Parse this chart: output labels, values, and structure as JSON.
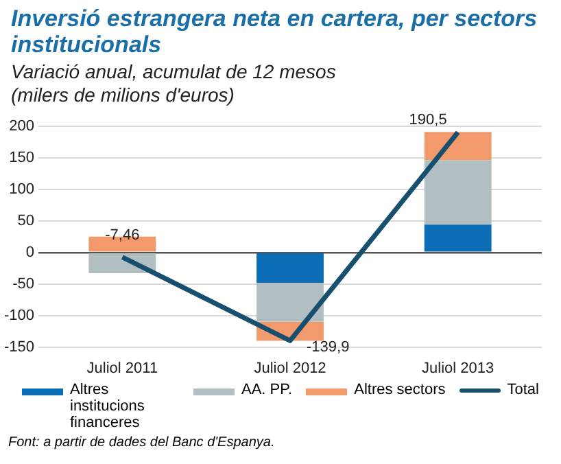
{
  "chart_data": {
    "type": "bar",
    "stacked": true,
    "title": "Inversió estrangera neta en cartera, per sectors institucionals",
    "subtitle": "Variació anual, acumulat de 12 mesos (milers de milions d'euros)",
    "categories": [
      "Juliol 2011",
      "Juliol 2012",
      "Juliol 2013"
    ],
    "series": [
      {
        "name": "Altres institucions financeres",
        "color": "#0a6db5",
        "values": [
          0,
          -48,
          44
        ]
      },
      {
        "name": "AA. PP.",
        "color": "#b2bfc2",
        "values": [
          -33,
          -62,
          102
        ]
      },
      {
        "name": "Altres sectors",
        "color": "#f29a6b",
        "values": [
          25,
          -30,
          45
        ]
      },
      {
        "name": "Total",
        "type": "line",
        "color": "#17506e",
        "values": [
          -7.46,
          -139.9,
          190.5
        ],
        "value_labels": [
          "-7,46",
          "-139,9",
          "190,5"
        ]
      }
    ],
    "ylim": [
      -150,
      200
    ],
    "yticks": [
      -150,
      -100,
      -50,
      0,
      50,
      100,
      150,
      200
    ],
    "grid": "y",
    "legend": "bottom",
    "annotations": [
      "Font: a partir de dades del Banc d'Espanya."
    ]
  }
}
